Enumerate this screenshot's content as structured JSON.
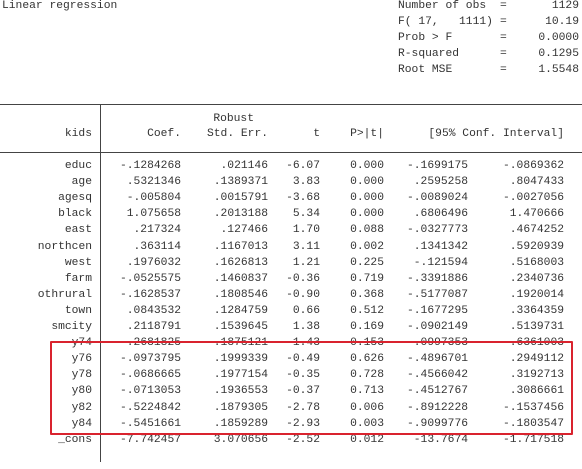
{
  "title": "Linear regression",
  "stats": [
    {
      "label": "Number of obs",
      "value": "1129"
    },
    {
      "label": "F( 17,   1111)",
      "value": "10.19"
    },
    {
      "label": "Prob > F",
      "value": "0.0000"
    },
    {
      "label": "R-squared",
      "value": "0.1295"
    },
    {
      "label": "Root MSE",
      "value": "1.5548"
    }
  ],
  "header": {
    "robust": "Robust",
    "depvar": "kids",
    "coef": "Coef.",
    "se": "Std. Err.",
    "t": "t",
    "p": "P>|t|",
    "ci": "[95% Conf. Interval]"
  },
  "rows": [
    {
      "var": "educ",
      "coef": "-.1284268",
      "se": ".021146",
      "t": "-6.07",
      "p": "0.000",
      "lo": "-.1699175",
      "hi": "-.0869362"
    },
    {
      "var": "age",
      "coef": ".5321346",
      "se": ".1389371",
      "t": "3.83",
      "p": "0.000",
      "lo": ".2595258",
      "hi": ".8047433"
    },
    {
      "var": "agesq",
      "coef": "-.005804",
      "se": ".0015791",
      "t": "-3.68",
      "p": "0.000",
      "lo": "-.0089024",
      "hi": "-.0027056"
    },
    {
      "var": "black",
      "coef": "1.075658",
      "se": ".2013188",
      "t": "5.34",
      "p": "0.000",
      "lo": ".6806496",
      "hi": "1.470666"
    },
    {
      "var": "east",
      "coef": ".217324",
      "se": ".127466",
      "t": "1.70",
      "p": "0.088",
      "lo": "-.0327773",
      "hi": ".4674252"
    },
    {
      "var": "northcen",
      "coef": ".363114",
      "se": ".1167013",
      "t": "3.11",
      "p": "0.002",
      "lo": ".1341342",
      "hi": ".5920939"
    },
    {
      "var": "west",
      "coef": ".1976032",
      "se": ".1626813",
      "t": "1.21",
      "p": "0.225",
      "lo": "-.121594",
      "hi": ".5168003"
    },
    {
      "var": "farm",
      "coef": "-.0525575",
      "se": ".1460837",
      "t": "-0.36",
      "p": "0.719",
      "lo": "-.3391886",
      "hi": ".2340736"
    },
    {
      "var": "othrural",
      "coef": "-.1628537",
      "se": ".1808546",
      "t": "-0.90",
      "p": "0.368",
      "lo": "-.5177087",
      "hi": ".1920014"
    },
    {
      "var": "town",
      "coef": ".0843532",
      "se": ".1284759",
      "t": "0.66",
      "p": "0.512",
      "lo": "-.1677295",
      "hi": ".3364359"
    },
    {
      "var": "smcity",
      "coef": ".2118791",
      "se": ".1539645",
      "t": "1.38",
      "p": "0.169",
      "lo": "-.0902149",
      "hi": ".5139731"
    },
    {
      "var": "y74",
      "coef": ".2681825",
      "se": ".1875121",
      "t": "1.43",
      "p": "0.153",
      "lo": "-.0997353",
      "hi": ".6361003"
    },
    {
      "var": "y76",
      "coef": "-.0973795",
      "se": ".1999339",
      "t": "-0.49",
      "p": "0.626",
      "lo": "-.4896701",
      "hi": ".2949112"
    },
    {
      "var": "y78",
      "coef": "-.0686665",
      "se": ".1977154",
      "t": "-0.35",
      "p": "0.728",
      "lo": "-.4566042",
      "hi": ".3192713"
    },
    {
      "var": "y80",
      "coef": "-.0713053",
      "se": ".1936553",
      "t": "-0.37",
      "p": "0.713",
      "lo": "-.4512767",
      "hi": ".3086661"
    },
    {
      "var": "y82",
      "coef": "-.5224842",
      "se": ".1879305",
      "t": "-2.78",
      "p": "0.006",
      "lo": "-.8912228",
      "hi": "-.1537456"
    },
    {
      "var": "y84",
      "coef": "-.5451661",
      "se": ".1859289",
      "t": "-2.93",
      "p": "0.003",
      "lo": "-.9099776",
      "hi": "-.1803547"
    },
    {
      "var": "_cons",
      "coef": "-7.742457",
      "se": "3.070656",
      "t": "-2.52",
      "p": "0.012",
      "lo": "-13.7674",
      "hi": "-1.717518"
    }
  ],
  "highlight_color": "#d9232e"
}
